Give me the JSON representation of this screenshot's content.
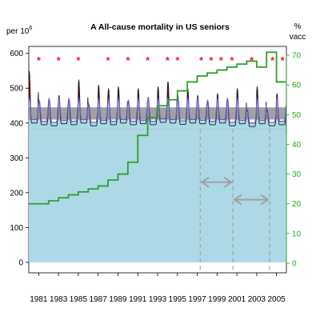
{
  "chart_data": {
    "type": "line",
    "title": "A  All-cause mortality in US seniors",
    "ylabel_left": "per 10",
    "ylabel_left_exponent": "6",
    "ylabel_right_top": "%",
    "ylabel_right_bottom": "vacc",
    "xlim": [
      1980,
      2006
    ],
    "ylim_left": [
      -30,
      620
    ],
    "ylim_right": [
      0,
      72
    ],
    "left_ticks": [
      0,
      100,
      200,
      300,
      400,
      500,
      600
    ],
    "right_ticks": [
      0,
      10,
      20,
      30,
      40,
      50,
      60,
      70
    ],
    "x_tick_labels": [
      "1981",
      "1983",
      "1985",
      "1987",
      "1989",
      "1991",
      "1993",
      "1995",
      "1997",
      "1999",
      "2001",
      "2003",
      "2005"
    ],
    "x_tick_values": [
      1981,
      1983,
      1985,
      1987,
      1989,
      1991,
      1993,
      1995,
      1997,
      1999,
      2001,
      2003,
      2005
    ],
    "baseline_band": {
      "low": 410,
      "high": 445
    },
    "baseline_level": 383,
    "mortality_series": {
      "name": "",
      "years": [
        1980.5,
        1981.5,
        1982.5,
        1983.5,
        1984.5,
        1985.5,
        1986.5,
        1987.5,
        1988.5,
        1989.5,
        1990.5,
        1991.5,
        1992.5,
        1993.5,
        1994.5,
        1995.5,
        1996.5,
        1997.5,
        1998.5,
        1999.5,
        2000.5,
        2001.5,
        2002.5,
        2003.5,
        2004.5,
        2005.5
      ],
      "winter_peak": [
        550,
        465,
        470,
        480,
        470,
        525,
        455,
        510,
        500,
        505,
        465,
        500,
        475,
        505,
        520,
        480,
        500,
        480,
        465,
        485,
        470,
        500,
        440,
        505,
        440,
        485
      ],
      "summer_trough": [
        400,
        395,
        392,
        398,
        395,
        400,
        392,
        398,
        395,
        400,
        395,
        398,
        395,
        402,
        400,
        396,
        400,
        398,
        395,
        400,
        392,
        398,
        390,
        398,
        392,
        395
      ],
      "baseline": [
        428,
        428,
        428,
        428,
        428,
        428,
        428,
        428,
        428,
        428,
        428,
        428,
        428,
        428,
        428,
        428,
        428,
        428,
        428,
        428,
        428,
        428,
        428,
        428,
        428,
        428
      ]
    },
    "vaccination_series": {
      "name": "",
      "years": [
        1980,
        1981,
        1982,
        1983,
        1984,
        1985,
        1986,
        1987,
        1988,
        1989,
        1990,
        1991,
        1992,
        1993,
        1994,
        1995,
        1996,
        1997,
        1998,
        1999,
        2000,
        2001,
        2002,
        2003,
        2004,
        2005,
        2006
      ],
      "values": [
        20,
        20,
        21,
        22,
        23,
        24,
        25,
        26,
        28,
        30,
        34,
        43,
        49,
        53,
        55,
        58,
        61,
        63,
        64,
        65,
        66,
        67,
        68,
        66,
        71,
        61,
        61
      ]
    },
    "significant_years": [
      1981,
      1983,
      1985,
      1988,
      1990,
      1992,
      1994,
      1995,
      1997.4,
      1998.4,
      1999.4,
      2000.5,
      2002.5,
      2004.6,
      2005.6
    ],
    "dashed_lines": [
      1997.3,
      2000.6,
      2004.3
    ],
    "arrows": [
      {
        "from": 1997.3,
        "to": 2000.6,
        "y": 230
      },
      {
        "from": 2000.6,
        "to": 2004.3,
        "y": 180
      }
    ],
    "colors": {
      "baseline_fill": "#add8e6",
      "excess_fill": "#8b0000",
      "mortality_line": "#1a1a1a",
      "model_line": "#6a5acd",
      "band": "#8a8a8a",
      "vaccination_line": "#2ca02c",
      "star": "#e8202a",
      "right_axis": "#22a822",
      "dashed": "#999999",
      "arrow": "#a0a0a0"
    }
  }
}
